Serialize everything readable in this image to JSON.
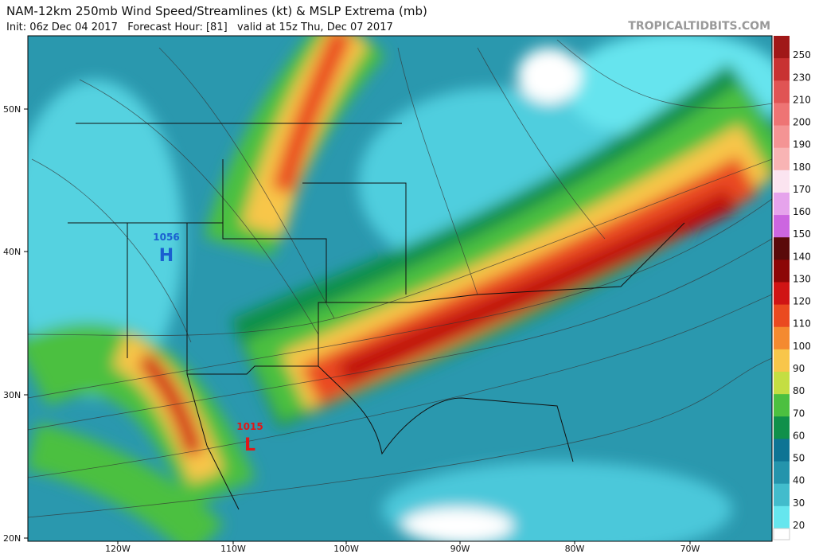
{
  "header": {
    "title": "NAM-12km 250mb Wind Speed/Streamlines (kt) & MSLP Extrema (mb)",
    "subtitle": "Init: 06z Dec 04 2017   Forecast Hour: [81]   valid at 15z Thu, Dec 07 2017",
    "site": "TROPICALTIDBITS.COM"
  },
  "map": {
    "lat_labels": [
      "50N",
      "40N",
      "30N",
      "20N"
    ],
    "lon_labels": [
      "120W",
      "110W",
      "100W",
      "90W",
      "80W",
      "70W"
    ],
    "pressure_centers": [
      {
        "symbol": "H",
        "value": "1056"
      },
      {
        "symbol": "L",
        "value": "1015"
      }
    ]
  },
  "colorbar": {
    "labels": [
      "250",
      "230",
      "210",
      "200",
      "190",
      "180",
      "170",
      "160",
      "150",
      "140",
      "130",
      "120",
      "110",
      "100",
      "90",
      "80",
      "70",
      "60",
      "50",
      "40",
      "30",
      "20"
    ],
    "colors": [
      "#a01818",
      "#c83232",
      "#e05454",
      "#ee7474",
      "#f49494",
      "#f8b4b4",
      "#fbe4f0",
      "#e6a4ec",
      "#cc66e0",
      "#5a0a0a",
      "#8c0606",
      "#d01414",
      "#ea4a20",
      "#f48a30",
      "#f8c64a",
      "#c4de42",
      "#4cc040",
      "#10904a",
      "#0e7494",
      "#2494ac",
      "#42bccc",
      "#66e6ee"
    ]
  }
}
